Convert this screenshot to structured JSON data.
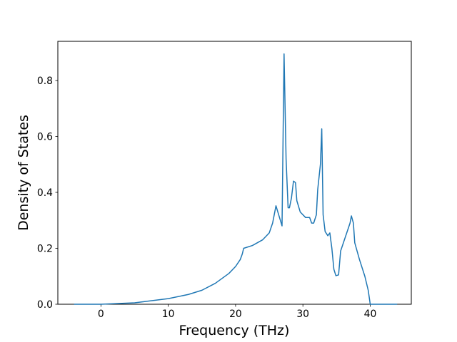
{
  "chart_data": {
    "type": "line",
    "x_label": "Frequency (THz)",
    "y_label": "Density of States",
    "color": "#1f77b4",
    "x": [
      -4,
      -2,
      0,
      5,
      10,
      13,
      15,
      17,
      19,
      20,
      20.7,
      21.0,
      21.2,
      22.5,
      24,
      25,
      25.5,
      26.0,
      26.9,
      27.2,
      27.5,
      27.8,
      28.0,
      28.3,
      28.6,
      28.9,
      29.1,
      29.6,
      30.4,
      31.0,
      31.3,
      31.6,
      32.0,
      32.2,
      32.6,
      32.8,
      33.0,
      33.3,
      33.7,
      34.0,
      34.3,
      34.6,
      34.9,
      35.3,
      35.6,
      36.3,
      37.0,
      37.2,
      37.5,
      37.7,
      38.4,
      39.2,
      39.7,
      40.0,
      42,
      44
    ],
    "values": [
      0,
      0,
      0,
      0.005,
      0.02,
      0.035,
      0.05,
      0.075,
      0.11,
      0.135,
      0.16,
      0.18,
      0.2,
      0.21,
      0.23,
      0.255,
      0.29,
      0.352,
      0.28,
      0.895,
      0.52,
      0.345,
      0.345,
      0.38,
      0.44,
      0.435,
      0.37,
      0.33,
      0.31,
      0.31,
      0.29,
      0.29,
      0.32,
      0.41,
      0.5,
      0.627,
      0.32,
      0.26,
      0.245,
      0.255,
      0.2,
      0.125,
      0.102,
      0.105,
      0.19,
      0.24,
      0.29,
      0.316,
      0.29,
      0.22,
      0.16,
      0.1,
      0.05,
      0,
      0,
      0
    ],
    "xlim": [
      -6.4,
      46.1
    ],
    "ylim": [
      0,
      0.94
    ],
    "xticks": [
      0,
      10,
      20,
      30,
      40
    ],
    "yticks": [
      {
        "value": 0,
        "label": "0.0"
      },
      0.2,
      0.4,
      0.6,
      0.8
    ]
  }
}
